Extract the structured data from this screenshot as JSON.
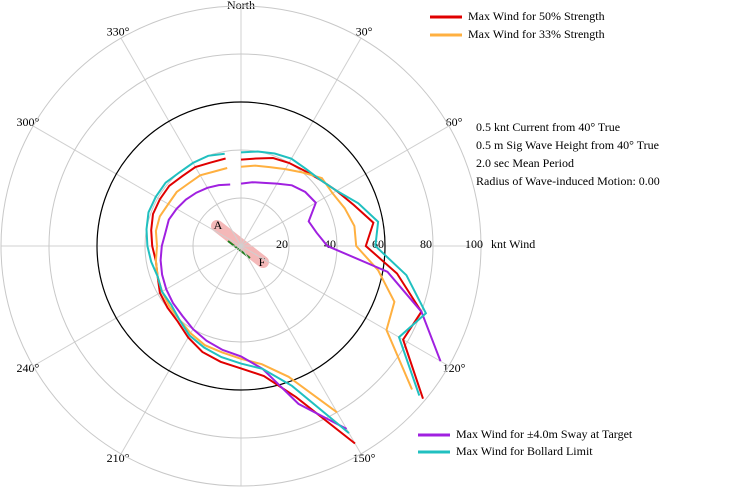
{
  "chart_data": {
    "type": "polar",
    "x": [
      0,
      10,
      20,
      30,
      40,
      50,
      60,
      70,
      80,
      90,
      100,
      110,
      120,
      130,
      140,
      150,
      160,
      170,
      180,
      190,
      200,
      210,
      220,
      230,
      240,
      250,
      260,
      270,
      280,
      290,
      300,
      310,
      320,
      330,
      340,
      350
    ],
    "series": [
      {
        "name": "Max Wind for 50% Strength",
        "color": "#e00000",
        "values": [
          36,
          37,
          39,
          40,
          41,
          43,
          46,
          50,
          56,
          52,
          66,
          80,
          78,
          99,
          null,
          95,
          67,
          55,
          51,
          49,
          47,
          44,
          41,
          40,
          39,
          37,
          36,
          37,
          38,
          39,
          39,
          39,
          38,
          38,
          37,
          37
        ]
      },
      {
        "name": "Max Wind for 33% Strength",
        "color": "#ffb040",
        "values": [
          33,
          34,
          35,
          37,
          40,
          44,
          44,
          46,
          48,
          48,
          58,
          68,
          70,
          93,
          null,
          80,
          58,
          50,
          47,
          45,
          44,
          42,
          40,
          39,
          38,
          37,
          36,
          35,
          36,
          36,
          35,
          35,
          34,
          34,
          33,
          33
        ]
      },
      {
        "name": "Max Wind for ±4.0m Sway at Target",
        "color": "#a020e0",
        "values": [
          26,
          27,
          28,
          30,
          33,
          35,
          36,
          30,
          32,
          36,
          62,
          80,
          96,
          null,
          null,
          88,
          70,
          52,
          46,
          44,
          42,
          40,
          38,
          37,
          36,
          35,
          34,
          33,
          32,
          32,
          31,
          30,
          29,
          28,
          27,
          26
        ]
      },
      {
        "name": "Max Wind for Bollard Limit",
        "color": "#20c0c0",
        "values": [
          39,
          40,
          41,
          42,
          42,
          43,
          46,
          52,
          58,
          56,
          70,
          82,
          76,
          97,
          null,
          90,
          62,
          52,
          49,
          47,
          45,
          43,
          40,
          38,
          38,
          37,
          38,
          39,
          40,
          41,
          41,
          41,
          40,
          40,
          40,
          39
        ]
      }
    ],
    "rlim": [
      0,
      100
    ],
    "rticks": [
      20,
      40,
      60,
      80,
      100
    ],
    "r_label": "knt Wind",
    "reference_ring": 60,
    "xticks": [
      {
        "value": 0,
        "label": "North"
      },
      {
        "value": 30,
        "label": "30°"
      },
      {
        "value": 60,
        "label": "60°"
      },
      {
        "value": 90,
        "label": ""
      },
      {
        "value": 120,
        "label": "120°"
      },
      {
        "value": 150,
        "label": "150°"
      },
      {
        "value": 180,
        "label": ""
      },
      {
        "value": 210,
        "label": "210°"
      },
      {
        "value": 240,
        "label": "240°"
      },
      {
        "value": 270,
        "label": ""
      },
      {
        "value": 300,
        "label": "300°"
      },
      {
        "value": 330,
        "label": "330°"
      }
    ],
    "notes": [
      "0.5 knt Current from 40° True",
      "0.5 m Sig Wave Height from 40° True",
      "2.0 sec Mean Period",
      "Radius of Wave-induced Motion:  0.00"
    ],
    "annotations": [
      "A",
      "F"
    ]
  }
}
